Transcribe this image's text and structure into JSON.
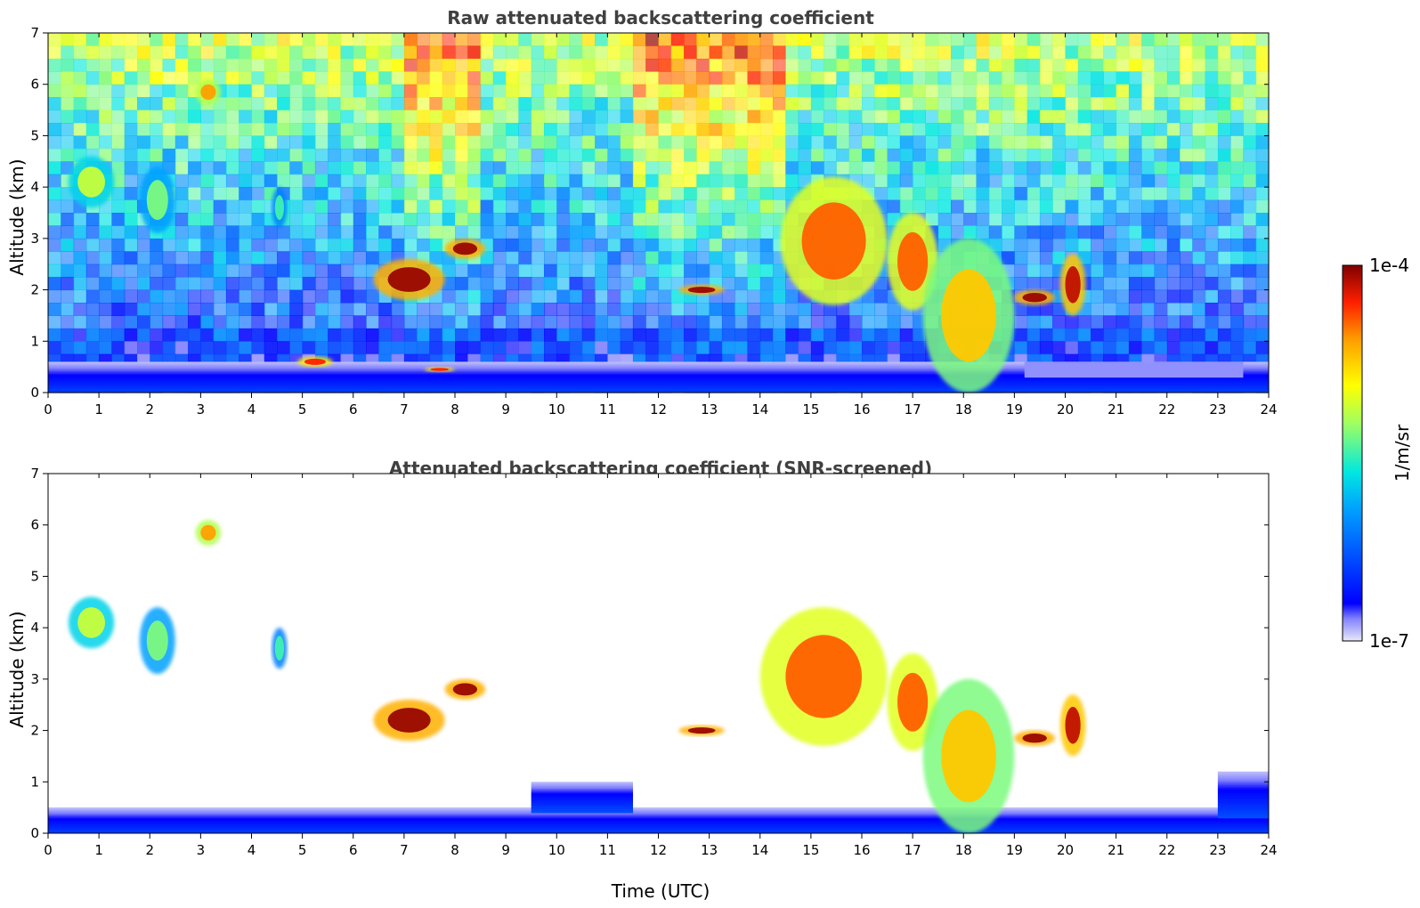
{
  "chart_data": [
    {
      "type": "heatmap",
      "title": "Raw attenuated backscattering coefficient",
      "xlabel": "",
      "ylabel": "Altitude (km)",
      "xlim": [
        0,
        24
      ],
      "ylim": [
        0,
        7
      ],
      "x_ticks": [
        "0",
        "1",
        "2",
        "3",
        "4",
        "5",
        "6",
        "7",
        "8",
        "9",
        "10",
        "11",
        "12",
        "13",
        "14",
        "15",
        "16",
        "17",
        "18",
        "19",
        "20",
        "21",
        "22",
        "23",
        "24"
      ],
      "y_ticks": [
        "0",
        "1",
        "2",
        "3",
        "4",
        "5",
        "6",
        "7"
      ],
      "screened": false,
      "features": [
        {
          "kind": "surface-layer",
          "x": [
            0,
            24
          ],
          "y": [
            0,
            0.6
          ],
          "level": 0.18
        },
        {
          "kind": "boundary-layer-haze",
          "x": [
            19.2,
            23.5
          ],
          "y": [
            0.3,
            0.6
          ],
          "level": 0.05
        },
        {
          "kind": "cloud",
          "x": [
            0.4,
            1.3
          ],
          "y": [
            3.6,
            4.6
          ],
          "level": 0.62
        },
        {
          "kind": "cloud",
          "x": [
            1.8,
            2.5
          ],
          "y": [
            3.1,
            4.4
          ],
          "level": 0.55
        },
        {
          "kind": "cloud",
          "x": [
            2.9,
            3.4
          ],
          "y": [
            5.6,
            6.1
          ],
          "level": 0.8
        },
        {
          "kind": "cloud",
          "x": [
            4.4,
            4.7
          ],
          "y": [
            3.2,
            4.0
          ],
          "level": 0.5
        },
        {
          "kind": "cloud",
          "x": [
            6.4,
            7.8
          ],
          "y": [
            1.8,
            2.6
          ],
          "level": 0.98
        },
        {
          "kind": "cloud",
          "x": [
            7.8,
            8.6
          ],
          "y": [
            2.6,
            3.0
          ],
          "level": 0.98
        },
        {
          "kind": "cloud",
          "x": [
            12.4,
            13.3
          ],
          "y": [
            1.9,
            2.1
          ],
          "level": 0.98
        },
        {
          "kind": "cloud",
          "x": [
            4.9,
            5.6
          ],
          "y": [
            0.5,
            0.7
          ],
          "level": 0.9
        },
        {
          "kind": "cloud",
          "x": [
            7.4,
            8.0
          ],
          "y": [
            0.4,
            0.5
          ],
          "level": 0.9
        },
        {
          "kind": "cloud",
          "x": [
            14.4,
            16.5
          ],
          "y": [
            1.7,
            4.2
          ],
          "level": 0.85
        },
        {
          "kind": "cloud",
          "x": [
            16.5,
            17.5
          ],
          "y": [
            1.6,
            3.5
          ],
          "level": 0.85
        },
        {
          "kind": "cloud",
          "x": [
            17.2,
            19.0
          ],
          "y": [
            0.0,
            3.0
          ],
          "level": 0.75
        },
        {
          "kind": "cloud",
          "x": [
            19.0,
            19.8
          ],
          "y": [
            1.7,
            2.0
          ],
          "level": 0.98
        },
        {
          "kind": "cloud",
          "x": [
            19.9,
            20.4
          ],
          "y": [
            1.5,
            2.7
          ],
          "level": 0.95
        }
      ]
    },
    {
      "type": "heatmap",
      "title": "Attenuated backscattering coefficient (SNR-screened)",
      "xlabel": "Time (UTC)",
      "ylabel": "Altitude (km)",
      "xlim": [
        0,
        24
      ],
      "ylim": [
        0,
        7
      ],
      "x_ticks": [
        "0",
        "1",
        "2",
        "3",
        "4",
        "5",
        "6",
        "7",
        "8",
        "9",
        "10",
        "11",
        "12",
        "13",
        "14",
        "15",
        "16",
        "17",
        "18",
        "19",
        "20",
        "21",
        "22",
        "23",
        "24"
      ],
      "y_ticks": [
        "0",
        "1",
        "2",
        "3",
        "4",
        "5",
        "6",
        "7"
      ],
      "screened": true,
      "features": [
        {
          "kind": "surface-layer",
          "x": [
            0,
            24
          ],
          "y": [
            0,
            0.5
          ],
          "level": 0.18
        },
        {
          "kind": "boundary-layer",
          "x": [
            9.5,
            11.5
          ],
          "y": [
            0.4,
            1.0
          ],
          "level": 0.2
        },
        {
          "kind": "boundary-layer",
          "x": [
            23.0,
            24.0
          ],
          "y": [
            0.3,
            1.2
          ],
          "level": 0.2
        },
        {
          "kind": "cloud",
          "x": [
            0.4,
            1.3
          ],
          "y": [
            3.6,
            4.6
          ],
          "level": 0.62
        },
        {
          "kind": "cloud",
          "x": [
            1.8,
            2.5
          ],
          "y": [
            3.1,
            4.4
          ],
          "level": 0.55
        },
        {
          "kind": "cloud",
          "x": [
            2.9,
            3.4
          ],
          "y": [
            5.6,
            6.1
          ],
          "level": 0.8
        },
        {
          "kind": "cloud",
          "x": [
            4.4,
            4.7
          ],
          "y": [
            3.2,
            4.0
          ],
          "level": 0.5
        },
        {
          "kind": "cloud",
          "x": [
            6.4,
            7.8
          ],
          "y": [
            1.8,
            2.6
          ],
          "level": 0.98
        },
        {
          "kind": "cloud",
          "x": [
            7.8,
            8.6
          ],
          "y": [
            2.6,
            3.0
          ],
          "level": 0.98
        },
        {
          "kind": "cloud",
          "x": [
            12.4,
            13.3
          ],
          "y": [
            1.9,
            2.1
          ],
          "level": 0.98
        },
        {
          "kind": "cloud",
          "x": [
            14.0,
            16.5
          ],
          "y": [
            1.7,
            4.4
          ],
          "level": 0.85
        },
        {
          "kind": "cloud",
          "x": [
            16.5,
            17.5
          ],
          "y": [
            1.6,
            3.5
          ],
          "level": 0.85
        },
        {
          "kind": "cloud",
          "x": [
            17.2,
            19.0
          ],
          "y": [
            0.0,
            3.0
          ],
          "level": 0.75
        },
        {
          "kind": "cloud",
          "x": [
            19.0,
            19.8
          ],
          "y": [
            1.7,
            2.0
          ],
          "level": 0.98
        },
        {
          "kind": "cloud",
          "x": [
            19.9,
            20.4
          ],
          "y": [
            1.5,
            2.7
          ],
          "level": 0.95
        }
      ]
    }
  ],
  "colorbar": {
    "label": "1/m/sr",
    "max_label": "1e-4",
    "min_label": "1e-7",
    "colormap": "jet",
    "colors": [
      "#e8e8f8",
      "#0000ff",
      "#00a0ff",
      "#00e8e0",
      "#a0ff60",
      "#ffff00",
      "#ffa000",
      "#ff2000",
      "#800000"
    ]
  }
}
